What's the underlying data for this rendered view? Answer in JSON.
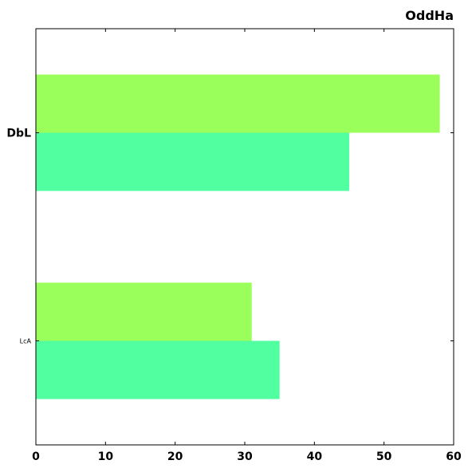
{
  "chart_data": {
    "type": "bar",
    "orientation": "horizontal",
    "title": "OddHa",
    "xlabel": "",
    "ylabel": "",
    "categories": [
      "DbL",
      "LcA"
    ],
    "series": [
      {
        "values": [
          58,
          31
        ],
        "color": "#9aff5a"
      },
      {
        "values": [
          45,
          35
        ],
        "color": "#52ffa0"
      }
    ],
    "xlim": [
      0,
      60
    ],
    "x_ticks": [
      0,
      10,
      20,
      30,
      40,
      50,
      60
    ],
    "grid": false,
    "legend": "none"
  }
}
